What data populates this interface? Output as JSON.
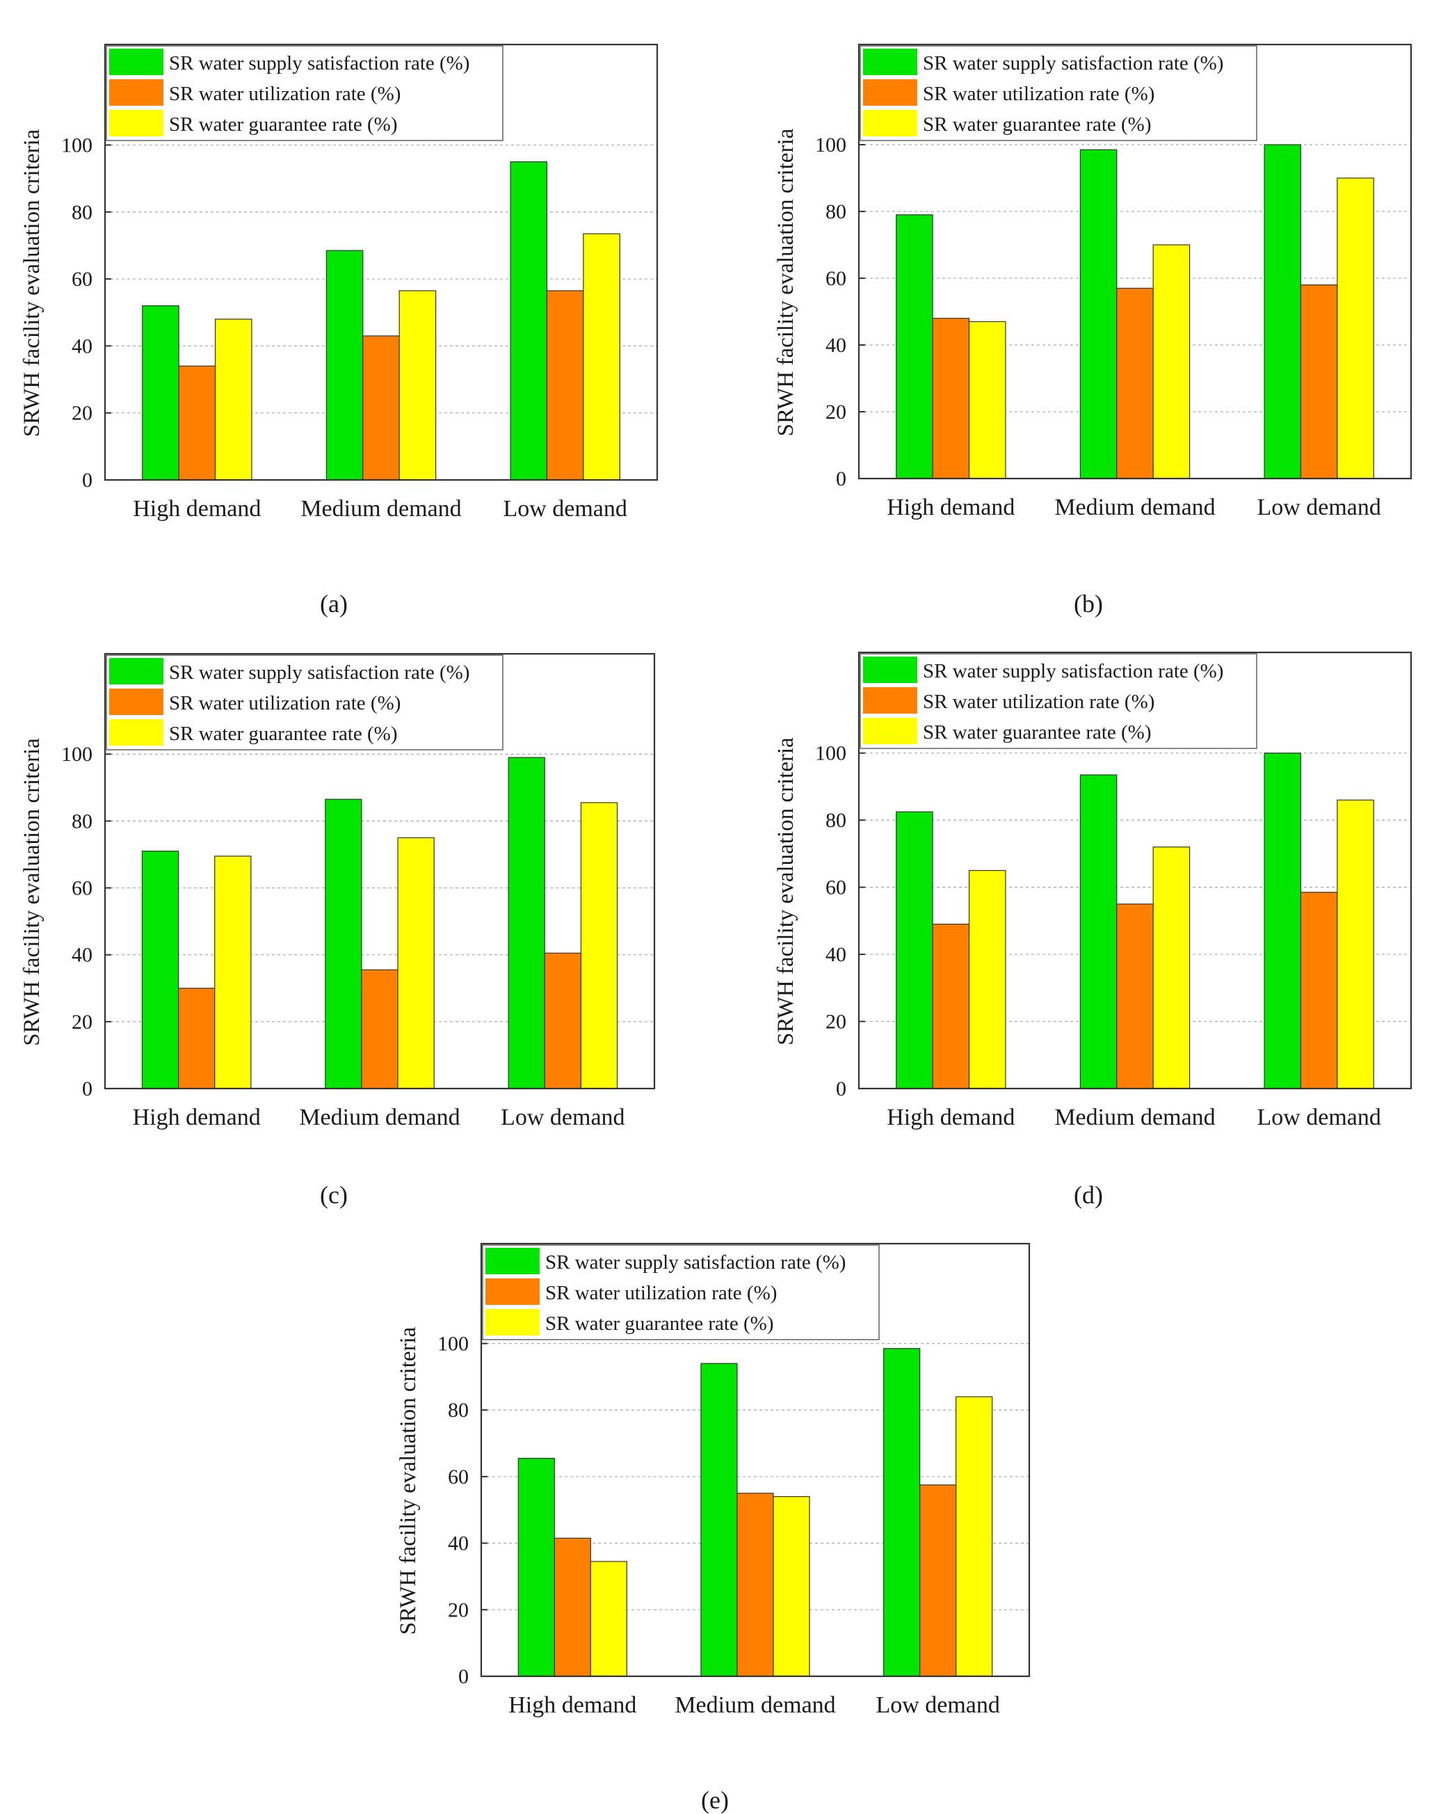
{
  "figure": {
    "ylabel": "SRWH facility evaluation criteria",
    "categories": [
      "High demand",
      "Medium demand",
      "Low demand"
    ],
    "legend": [
      {
        "label": "SR water supply satisfaction rate (%)",
        "color": "#00e600"
      },
      {
        "label": "SR water utilization rate (%)",
        "color": "#ff7f00"
      },
      {
        "label": "SR water guarantee rate (%)",
        "color": "#ffff00"
      }
    ],
    "yticks": [
      "0",
      "20",
      "40",
      "60",
      "80",
      "100"
    ]
  },
  "chart_data": [
    {
      "type": "bar",
      "caption": "(a)",
      "categories": [
        "High demand",
        "Medium demand",
        "Low demand"
      ],
      "ylabel": "SRWH facility evaluation criteria",
      "ylim": [
        0,
        130
      ],
      "yticks": [
        0,
        20,
        40,
        60,
        80,
        100
      ],
      "grid": true,
      "legend_position": "top-left",
      "series": [
        {
          "name": "SR water supply satisfaction rate (%)",
          "values": [
            52,
            68.5,
            95
          ]
        },
        {
          "name": "SR water utilization rate (%)",
          "values": [
            34,
            43,
            56.5
          ]
        },
        {
          "name": "SR water guarantee rate (%)",
          "values": [
            48,
            56.5,
            73.5
          ]
        }
      ]
    },
    {
      "type": "bar",
      "caption": "(b)",
      "categories": [
        "High demand",
        "Medium demand",
        "Low demand"
      ],
      "ylabel": "SRWH facility evaluation criteria",
      "ylim": [
        0,
        130
      ],
      "yticks": [
        0,
        20,
        40,
        60,
        80,
        100
      ],
      "grid": true,
      "legend_position": "top-left",
      "series": [
        {
          "name": "SR water supply satisfaction rate (%)",
          "values": [
            79,
            98.5,
            100
          ]
        },
        {
          "name": "SR water utilization rate (%)",
          "values": [
            48,
            57,
            58
          ]
        },
        {
          "name": "SR water guarantee rate (%)",
          "values": [
            47,
            70,
            90
          ]
        }
      ]
    },
    {
      "type": "bar",
      "caption": "(c)",
      "categories": [
        "High demand",
        "Medium demand",
        "Low demand"
      ],
      "ylabel": "SRWH facility evaluation criteria",
      "ylim": [
        0,
        130
      ],
      "yticks": [
        0,
        20,
        40,
        60,
        80,
        100
      ],
      "grid": true,
      "legend_position": "top-left",
      "series": [
        {
          "name": "SR water supply satisfaction rate (%)",
          "values": [
            71,
            86.5,
            99
          ]
        },
        {
          "name": "SR water utilization rate (%)",
          "values": [
            30,
            35.5,
            40.5
          ]
        },
        {
          "name": "SR water guarantee rate (%)",
          "values": [
            69.5,
            75,
            85.5
          ]
        }
      ]
    },
    {
      "type": "bar",
      "caption": "(d)",
      "categories": [
        "High demand",
        "Medium demand",
        "Low demand"
      ],
      "ylabel": "SRWH facility evaluation criteria",
      "ylim": [
        0,
        130
      ],
      "yticks": [
        0,
        20,
        40,
        60,
        80,
        100
      ],
      "grid": true,
      "legend_position": "top-left",
      "series": [
        {
          "name": "SR water supply satisfaction rate (%)",
          "values": [
            82.5,
            93.5,
            100
          ]
        },
        {
          "name": "SR water utilization rate (%)",
          "values": [
            49,
            55,
            58.5
          ]
        },
        {
          "name": "SR water guarantee rate (%)",
          "values": [
            65,
            72,
            86
          ]
        }
      ]
    },
    {
      "type": "bar",
      "caption": "(e)",
      "categories": [
        "High demand",
        "Medium demand",
        "Low demand"
      ],
      "ylabel": "SRWH facility evaluation criteria",
      "ylim": [
        0,
        130
      ],
      "yticks": [
        0,
        20,
        40,
        60,
        80,
        100
      ],
      "grid": true,
      "legend_position": "top-left",
      "series": [
        {
          "name": "SR water supply satisfaction rate (%)",
          "values": [
            65.5,
            94,
            98.5
          ]
        },
        {
          "name": "SR water utilization rate (%)",
          "values": [
            41.5,
            55,
            57.5
          ]
        },
        {
          "name": "SR water guarantee rate (%)",
          "values": [
            34.5,
            54,
            84
          ]
        }
      ]
    }
  ]
}
